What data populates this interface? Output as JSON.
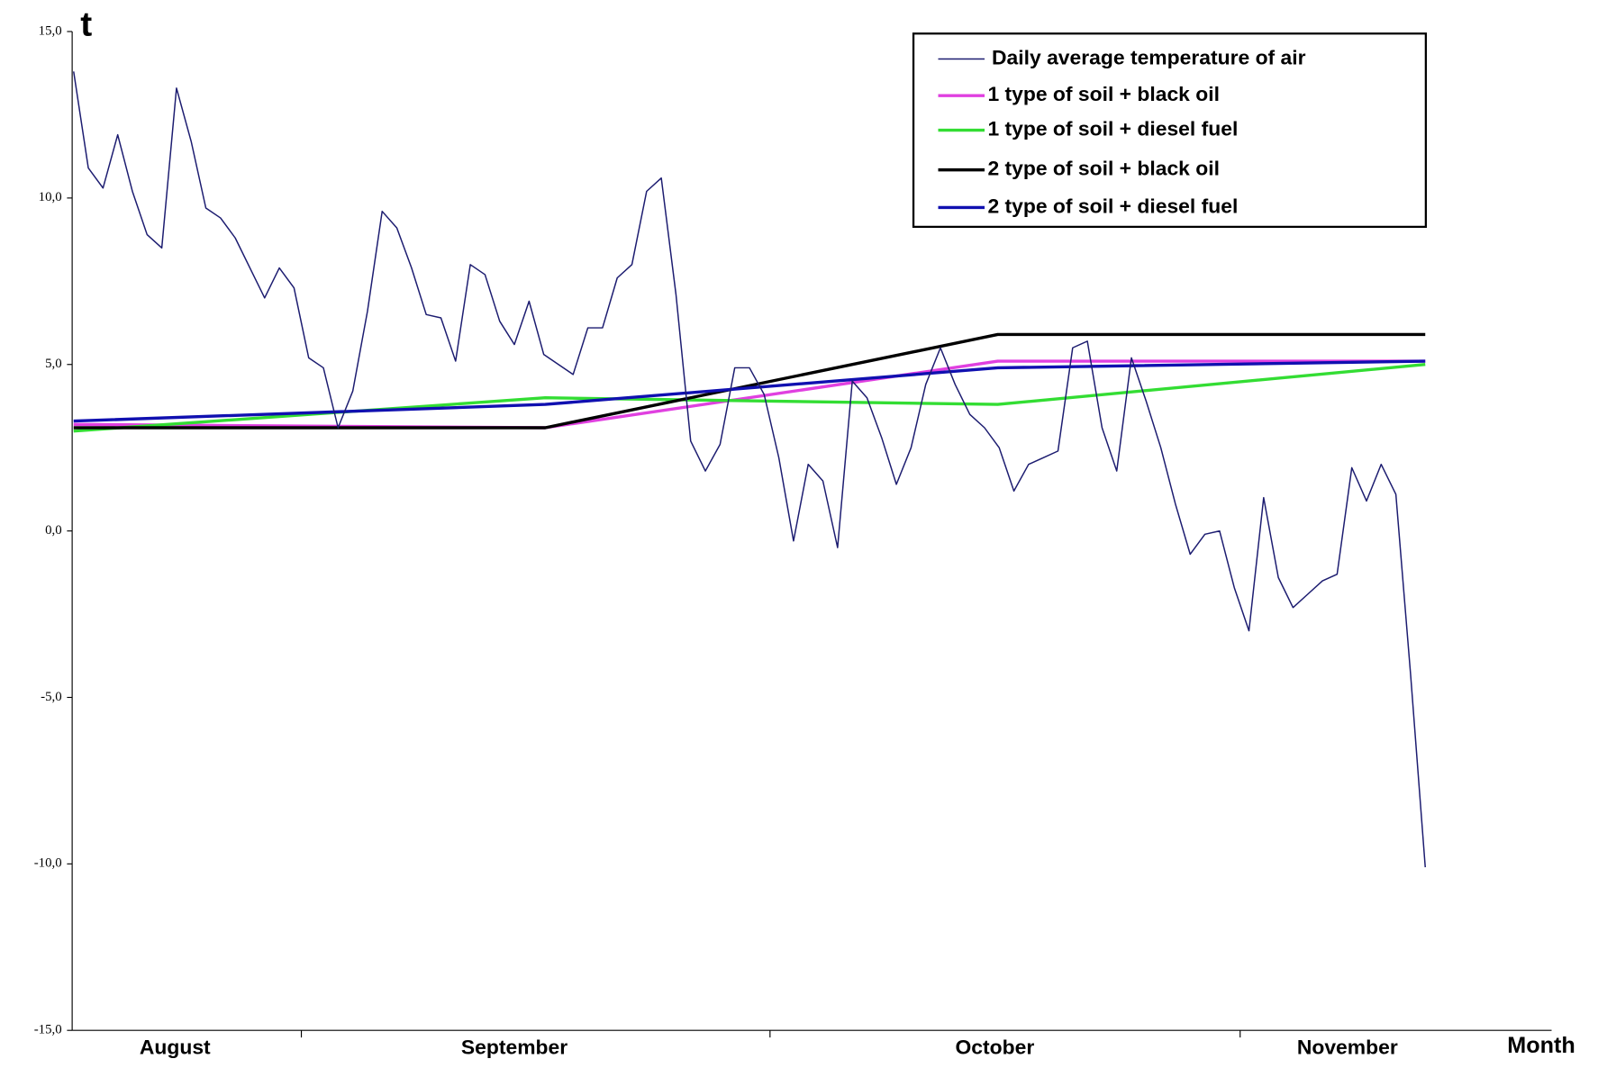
{
  "chart_data": {
    "type": "line",
    "y_label": "t",
    "x_label": "Month",
    "xlim": [
      -0.1,
      100.6
    ],
    "ylim": [
      -15,
      15
    ],
    "yticks": [
      {
        "value": -15,
        "label": "-15,0"
      },
      {
        "value": -10,
        "label": "-10,0"
      },
      {
        "value": -5,
        "label": "-5,0"
      },
      {
        "value": 0,
        "label": "0,0"
      },
      {
        "value": 5,
        "label": "5,0"
      },
      {
        "value": 10,
        "label": "10,0"
      },
      {
        "value": 15,
        "label": "15,0"
      }
    ],
    "xticks": [
      {
        "value": 6.9,
        "label": "August"
      },
      {
        "value": 30,
        "label": "September"
      },
      {
        "value": 62.7,
        "label": "October"
      },
      {
        "value": 86.7,
        "label": "November"
      }
    ],
    "xtick_marks": [
      15.5,
      47.4,
      79.4
    ],
    "legend": "upper right",
    "series": [
      {
        "name": "Daily average temperature of air",
        "color": "#1c1c70",
        "width": 1.3,
        "x": [
          0,
          1,
          2,
          3,
          4,
          5,
          6,
          7,
          8,
          9,
          10,
          11,
          12,
          13,
          14,
          15,
          16,
          17,
          18,
          19,
          20,
          21,
          22,
          23,
          24,
          25,
          26,
          27,
          28,
          29,
          30,
          31,
          32,
          33,
          34,
          35,
          36,
          37,
          38,
          39,
          40,
          41,
          42,
          43,
          44,
          45,
          46,
          47,
          48,
          49,
          50,
          51,
          52,
          53,
          54,
          55,
          56,
          57,
          58,
          59,
          60,
          61,
          62,
          63,
          64,
          65,
          66,
          67,
          68,
          69,
          70,
          71,
          72,
          73,
          74,
          75,
          76,
          77,
          78,
          79,
          80,
          81,
          82,
          83,
          84,
          85,
          86,
          87,
          88,
          89,
          90,
          91,
          92
        ],
        "values": [
          13.8,
          10.9,
          10.3,
          11.9,
          10.2,
          8.9,
          8.5,
          13.3,
          11.7,
          9.7,
          9.4,
          8.8,
          7.9,
          7.0,
          7.9,
          7.3,
          5.2,
          4.9,
          3.1,
          4.2,
          6.6,
          9.6,
          9.1,
          7.9,
          6.5,
          6.4,
          5.1,
          8.0,
          7.7,
          6.3,
          5.6,
          6.9,
          5.3,
          5.0,
          4.7,
          6.1,
          6.1,
          7.6,
          8.0,
          10.2,
          10.6,
          7.1,
          2.7,
          1.8,
          2.6,
          4.9,
          4.9,
          4.1,
          2.2,
          -0.3,
          2.0,
          1.5,
          -0.5,
          4.5,
          4.0,
          2.8,
          1.4,
          2.5,
          4.4,
          5.5,
          4.4,
          3.5,
          3.1,
          2.5,
          1.2,
          2.0,
          2.2,
          2.4,
          5.5,
          5.7,
          3.1,
          1.8,
          5.2,
          3.9,
          2.5,
          0.8,
          -0.7,
          -0.1,
          0.0,
          -1.7,
          -3.0,
          1.0,
          -1.4,
          -2.3,
          -1.9,
          -1.5,
          -1.3,
          1.9,
          0.9,
          2.0,
          1.1,
          -4.3,
          -10.1
        ]
      },
      {
        "name": "1 type of soil + black oil",
        "color": "#e040e0",
        "width": 3,
        "x": [
          0,
          32.1,
          62.9,
          92
        ],
        "values": [
          3.2,
          3.1,
          5.1,
          5.1
        ]
      },
      {
        "name": "1 type of soil + diesel fuel",
        "color": "#33dd33",
        "width": 3,
        "x": [
          0,
          32.1,
          62.9,
          92
        ],
        "values": [
          3.0,
          4.0,
          3.8,
          5.0
        ]
      },
      {
        "name": "2 type of soil + black oil",
        "color": "#000000",
        "width": 3,
        "x": [
          0,
          32.1,
          62.9,
          92
        ],
        "values": [
          3.1,
          3.1,
          5.9,
          5.9
        ]
      },
      {
        "name": "2 type of soil + diesel fuel",
        "color": "#1010b0",
        "width": 3,
        "x": [
          0,
          32.1,
          62.9,
          92
        ],
        "values": [
          3.3,
          3.8,
          4.9,
          5.1
        ]
      }
    ]
  }
}
